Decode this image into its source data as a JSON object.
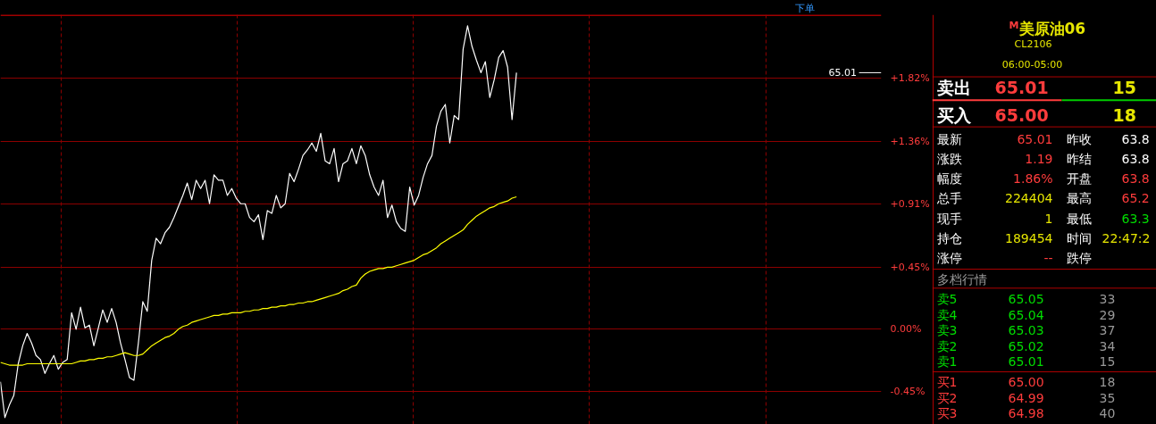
{
  "chart_data": {
    "type": "line",
    "categories": [
      null,
      null,
      null,
      null,
      null,
      null,
      null,
      null,
      null,
      null,
      null,
      null,
      null,
      null,
      null,
      null,
      null,
      null,
      null,
      null,
      null,
      null,
      null,
      null,
      null,
      null,
      null,
      null,
      null,
      null,
      null,
      null,
      null,
      null,
      null,
      null,
      null,
      null,
      null,
      null,
      null,
      null,
      null,
      null,
      null,
      null,
      null,
      null,
      null,
      null,
      null,
      null,
      null,
      null,
      null,
      null,
      null,
      null,
      null,
      null,
      null,
      null,
      null,
      null,
      null,
      null,
      null,
      null,
      null,
      null,
      null,
      null,
      null,
      null,
      null,
      null,
      null,
      null,
      null,
      null,
      null,
      null,
      null,
      null,
      null,
      null,
      null,
      null,
      null,
      null,
      null,
      null,
      null,
      null,
      null,
      null,
      null,
      null,
      null,
      null,
      null,
      null,
      null,
      null,
      null,
      null,
      null,
      null,
      null,
      null,
      null,
      null,
      null,
      null,
      null,
      null,
      null,
      null,
      null,
      null,
      null,
      null,
      null,
      null,
      null,
      null,
      null,
      null,
      null,
      null,
      null,
      null,
      null,
      null,
      null,
      null,
      null,
      null,
      null,
      null,
      null,
      null,
      null,
      null,
      null,
      null,
      null,
      null,
      null,
      null,
      null,
      null,
      null,
      null,
      null,
      null,
      null,
      null,
      null,
      null,
      null,
      null,
      null,
      null,
      null,
      null,
      null,
      null,
      null,
      null,
      null,
      null,
      null,
      null,
      null,
      null,
      null,
      null,
      null,
      null,
      null,
      null,
      null,
      null,
      null,
      null,
      null,
      null,
      null,
      null,
      null,
      null,
      null,
      null,
      null,
      null,
      null,
      null,
      null
    ],
    "ylim": [
      -0.69,
      2.28
    ],
    "yticks": [
      {
        "value": 1.82,
        "label": "+1.82%"
      },
      {
        "value": 1.36,
        "label": "+1.36%"
      },
      {
        "value": 0.91,
        "label": "+0.91%"
      },
      {
        "value": 0.45,
        "label": "+0.45%"
      },
      {
        "value": 0.0,
        "label": "0.00%"
      },
      {
        "value": -0.45,
        "label": "-0.45%"
      }
    ],
    "tick_labels": "y",
    "grid": true,
    "line_style": "solid",
    "series": [
      {
        "color": "#ffffff",
        "values": [
          -0.38,
          -0.64,
          -0.55,
          -0.48,
          -0.25,
          -0.12,
          -0.03,
          -0.1,
          -0.19,
          -0.22,
          -0.32,
          -0.25,
          -0.19,
          -0.29,
          -0.24,
          -0.22,
          0.12,
          0.0,
          0.16,
          0.01,
          0.03,
          -0.12,
          0.01,
          0.14,
          0.05,
          0.15,
          0.05,
          -0.1,
          -0.22,
          -0.35,
          -0.37,
          -0.1,
          0.2,
          0.13,
          0.5,
          0.66,
          0.62,
          0.7,
          0.74,
          0.81,
          0.89,
          0.97,
          1.06,
          0.94,
          1.08,
          1.02,
          1.08,
          0.91,
          1.12,
          1.08,
          1.08,
          0.97,
          1.02,
          0.95,
          0.91,
          0.91,
          0.81,
          0.78,
          0.83,
          0.65,
          0.86,
          0.84,
          0.97,
          0.88,
          0.91,
          1.13,
          1.07,
          1.16,
          1.26,
          1.3,
          1.35,
          1.29,
          1.42,
          1.22,
          1.2,
          1.31,
          1.07,
          1.2,
          1.22,
          1.31,
          1.2,
          1.33,
          1.26,
          1.12,
          1.03,
          0.97,
          1.08,
          0.81,
          0.9,
          0.78,
          0.73,
          0.71,
          1.03,
          0.9,
          0.97,
          1.1,
          1.2,
          1.26,
          1.47,
          1.58,
          1.63,
          1.35,
          1.55,
          1.52,
          2.03,
          2.2,
          2.05,
          1.95,
          1.86,
          1.94,
          1.68,
          1.81,
          1.97,
          2.02,
          1.9,
          1.52,
          1.86,
          null,
          null,
          null,
          null,
          null,
          null,
          null,
          null,
          null,
          null,
          null,
          null,
          null,
          null,
          null,
          null,
          null,
          null,
          null,
          null,
          null,
          null,
          null,
          null,
          null,
          null,
          null,
          null,
          null,
          null,
          null,
          null,
          null,
          null,
          null,
          null,
          null,
          null,
          null,
          null,
          null,
          null,
          null,
          null,
          null,
          null,
          null,
          null,
          null,
          null,
          null,
          null,
          null,
          null,
          null,
          null,
          null,
          null,
          null,
          null,
          null,
          null,
          null,
          null,
          null,
          null,
          null,
          null,
          null,
          null,
          null,
          null,
          null,
          null,
          null,
          null,
          null,
          null,
          null,
          null,
          null,
          null
        ]
      },
      {
        "color": "#ffff00",
        "values": [
          -0.24,
          -0.25,
          -0.26,
          -0.26,
          -0.26,
          -0.26,
          -0.25,
          -0.25,
          -0.25,
          -0.25,
          -0.25,
          -0.25,
          -0.25,
          -0.25,
          -0.25,
          -0.25,
          -0.25,
          -0.24,
          -0.23,
          -0.23,
          -0.22,
          -0.22,
          -0.21,
          -0.21,
          -0.2,
          -0.2,
          -0.19,
          -0.18,
          -0.17,
          -0.18,
          -0.19,
          -0.19,
          -0.18,
          -0.15,
          -0.12,
          -0.1,
          -0.08,
          -0.06,
          -0.05,
          -0.03,
          0.0,
          0.02,
          0.03,
          0.05,
          0.06,
          0.07,
          0.08,
          0.09,
          0.1,
          0.1,
          0.11,
          0.11,
          0.12,
          0.12,
          0.12,
          0.13,
          0.13,
          0.14,
          0.14,
          0.15,
          0.15,
          0.16,
          0.16,
          0.17,
          0.17,
          0.18,
          0.18,
          0.19,
          0.19,
          0.2,
          0.2,
          0.21,
          0.22,
          0.23,
          0.24,
          0.25,
          0.26,
          0.28,
          0.29,
          0.31,
          0.32,
          0.37,
          0.4,
          0.42,
          0.43,
          0.44,
          0.44,
          0.45,
          0.45,
          0.46,
          0.47,
          0.48,
          0.49,
          0.5,
          0.52,
          0.54,
          0.55,
          0.57,
          0.59,
          0.62,
          0.64,
          0.66,
          0.68,
          0.7,
          0.72,
          0.76,
          0.79,
          0.82,
          0.84,
          0.86,
          0.88,
          0.89,
          0.91,
          0.92,
          0.93,
          0.95,
          0.96,
          null,
          null,
          null,
          null,
          null,
          null,
          null,
          null,
          null,
          null,
          null,
          null,
          null,
          null,
          null,
          null,
          null,
          null,
          null,
          null,
          null,
          null,
          null,
          null,
          null,
          null,
          null,
          null,
          null,
          null,
          null,
          null,
          null,
          null,
          null,
          null,
          null,
          null,
          null,
          null,
          null,
          null,
          null,
          null,
          null,
          null,
          null,
          null,
          null,
          null,
          null,
          null,
          null,
          null,
          null,
          null,
          null,
          null,
          null,
          null,
          null,
          null,
          null,
          null,
          null,
          null,
          null,
          null,
          null,
          null,
          null,
          null,
          null,
          null,
          null,
          null,
          null,
          null,
          null,
          null,
          null,
          null
        ]
      }
    ],
    "annotations": [
      "下单",
      "65.01",
      "M",
      "美原油06",
      "CL2106",
      "06:00-05:00",
      "卖出",
      "65.01",
      "15",
      "买入",
      "65.00",
      "18",
      "最新",
      "65.01",
      "昨收",
      "63.8",
      "涨跌",
      "1.19",
      "昨结",
      "63.8",
      "幅度",
      "1.86%",
      "开盘",
      "63.8",
      "总手",
      "224404",
      "最高",
      "65.2",
      "现手",
      "1",
      "最低",
      "63.3",
      "持仓",
      "189454",
      "时间",
      "22:47:2",
      "涨停",
      "--",
      "跌停",
      "多档行情",
      "卖5",
      "65.05",
      "33",
      "卖4",
      "65.04",
      "29",
      "卖3",
      "65.03",
      "37",
      "卖2",
      "65.02",
      "34",
      "卖1",
      "65.01",
      "15",
      "买1",
      "65.00",
      "18",
      "买2",
      "64.99",
      "35",
      "买3",
      "64.98",
      "40"
    ]
  }
}
